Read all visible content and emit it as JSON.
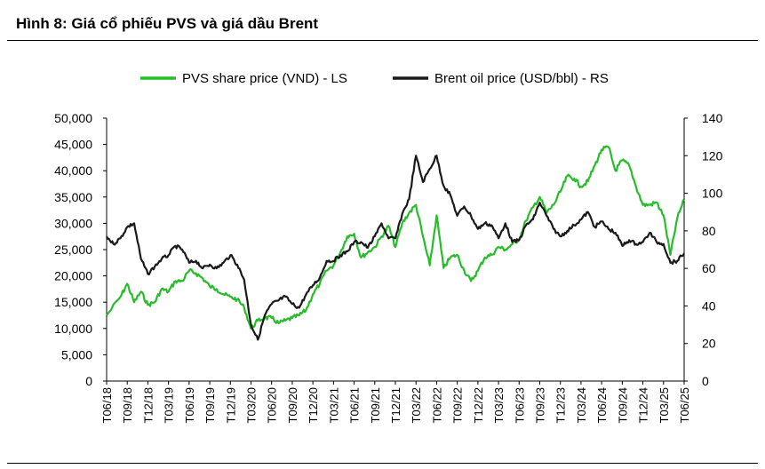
{
  "figure_title": "Hình 8: Giá cổ phiếu PVS và giá dầu Brent",
  "colors": {
    "pvs": "#27bd2a",
    "brent": "#1a1a1a",
    "axis": "#000000"
  },
  "chart_data": {
    "type": "line",
    "title": "",
    "y_left": {
      "min": 0,
      "max": 50000,
      "step": 5000,
      "ticks": [
        "0",
        "5,000",
        "10,000",
        "15,000",
        "20,000",
        "25,000",
        "30,000",
        "35,000",
        "40,000",
        "45,000",
        "50,000"
      ]
    },
    "y_right": {
      "min": 0,
      "max": 140,
      "step": 20,
      "ticks": [
        "0",
        "20",
        "40",
        "60",
        "80",
        "100",
        "120",
        "140"
      ]
    },
    "x_range": [
      "2018-06",
      "2025-06"
    ],
    "x_ticks": [
      "T06/18",
      "T09/18",
      "T12/18",
      "T03/19",
      "T06/19",
      "T09/19",
      "T12/19",
      "T03/20",
      "T06/20",
      "T09/20",
      "T12/20",
      "T03/21",
      "T06/21",
      "T09/21",
      "T12/21",
      "T03/22",
      "T06/22",
      "T09/22",
      "T12/22",
      "T03/23",
      "T06/23",
      "T09/23",
      "T12/23",
      "T03/24",
      "T06/24",
      "T09/24",
      "T12/24",
      "T03/25",
      "T06/25"
    ],
    "legend_position": "top",
    "series": [
      {
        "name": "PVS share price (VND) - LS",
        "axis": "left",
        "color": "#27bd2a",
        "points": [
          [
            "2018-06",
            12500
          ],
          [
            "2018-08",
            16000
          ],
          [
            "2018-09",
            18500
          ],
          [
            "2018-10",
            15000
          ],
          [
            "2018-11",
            17000
          ],
          [
            "2018-12",
            14500
          ],
          [
            "2019-01",
            15000
          ],
          [
            "2019-02",
            17500
          ],
          [
            "2019-03",
            17000
          ],
          [
            "2019-04",
            19000
          ],
          [
            "2019-05",
            19000
          ],
          [
            "2019-06",
            21000
          ],
          [
            "2019-07",
            20500
          ],
          [
            "2019-08",
            19500
          ],
          [
            "2019-09",
            18000
          ],
          [
            "2019-10",
            17500
          ],
          [
            "2019-11",
            16500
          ],
          [
            "2019-12",
            16000
          ],
          [
            "2020-01",
            15500
          ],
          [
            "2020-02",
            14000
          ],
          [
            "2020-03",
            10000
          ],
          [
            "2020-04",
            11500
          ],
          [
            "2020-05",
            12000
          ],
          [
            "2020-06",
            12000
          ],
          [
            "2020-07",
            11000
          ],
          [
            "2020-08",
            11500
          ],
          [
            "2020-09",
            12000
          ],
          [
            "2020-10",
            12500
          ],
          [
            "2020-11",
            13500
          ],
          [
            "2020-12",
            16500
          ],
          [
            "2021-01",
            18500
          ],
          [
            "2021-02",
            21000
          ],
          [
            "2021-03",
            22000
          ],
          [
            "2021-04",
            24500
          ],
          [
            "2021-05",
            27500
          ],
          [
            "2021-06",
            28000
          ],
          [
            "2021-07",
            23500
          ],
          [
            "2021-08",
            24500
          ],
          [
            "2021-09",
            25500
          ],
          [
            "2021-10",
            27500
          ],
          [
            "2021-11",
            29500
          ],
          [
            "2021-12",
            25500
          ],
          [
            "2022-01",
            30000
          ],
          [
            "2022-02",
            32000
          ],
          [
            "2022-03",
            33500
          ],
          [
            "2022-04",
            27500
          ],
          [
            "2022-05",
            22000
          ],
          [
            "2022-06",
            31500
          ],
          [
            "2022-07",
            21500
          ],
          [
            "2022-08",
            23500
          ],
          [
            "2022-09",
            24000
          ],
          [
            "2022-10",
            21000
          ],
          [
            "2022-11",
            19000
          ],
          [
            "2022-12",
            21000
          ],
          [
            "2023-01",
            23500
          ],
          [
            "2023-02",
            24000
          ],
          [
            "2023-03",
            25500
          ],
          [
            "2023-04",
            25000
          ],
          [
            "2023-05",
            26000
          ],
          [
            "2023-06",
            27000
          ],
          [
            "2023-07",
            30500
          ],
          [
            "2023-08",
            33000
          ],
          [
            "2023-09",
            35000
          ],
          [
            "2023-10",
            32000
          ],
          [
            "2023-11",
            33500
          ],
          [
            "2023-12",
            36000
          ],
          [
            "2024-01",
            39000
          ],
          [
            "2024-02",
            38500
          ],
          [
            "2024-03",
            37000
          ],
          [
            "2024-04",
            38000
          ],
          [
            "2024-05",
            41000
          ],
          [
            "2024-06",
            44000
          ],
          [
            "2024-07",
            44500
          ],
          [
            "2024-08",
            40000
          ],
          [
            "2024-09",
            42000
          ],
          [
            "2024-10",
            41000
          ],
          [
            "2024-11",
            37000
          ],
          [
            "2024-12",
            33500
          ],
          [
            "2025-01",
            33500
          ],
          [
            "2025-02",
            34000
          ],
          [
            "2025-03",
            31500
          ],
          [
            "2025-04",
            24000
          ],
          [
            "2025-05",
            31000
          ],
          [
            "2025-06",
            34500
          ]
        ]
      },
      {
        "name": "Brent oil price (USD/bbl) - RS",
        "axis": "right",
        "color": "#1a1a1a",
        "points": [
          [
            "2018-06",
            77
          ],
          [
            "2018-07",
            73
          ],
          [
            "2018-08",
            76
          ],
          [
            "2018-09",
            82
          ],
          [
            "2018-10",
            84
          ],
          [
            "2018-11",
            65
          ],
          [
            "2018-12",
            57
          ],
          [
            "2019-01",
            61
          ],
          [
            "2019-02",
            65
          ],
          [
            "2019-03",
            67
          ],
          [
            "2019-04",
            72
          ],
          [
            "2019-05",
            70
          ],
          [
            "2019-06",
            63
          ],
          [
            "2019-07",
            64
          ],
          [
            "2019-08",
            60
          ],
          [
            "2019-09",
            62
          ],
          [
            "2019-10",
            60
          ],
          [
            "2019-11",
            63
          ],
          [
            "2019-12",
            67
          ],
          [
            "2020-01",
            62
          ],
          [
            "2020-02",
            54
          ],
          [
            "2020-03",
            30
          ],
          [
            "2020-04",
            22
          ],
          [
            "2020-05",
            35
          ],
          [
            "2020-06",
            41
          ],
          [
            "2020-07",
            43
          ],
          [
            "2020-08",
            45
          ],
          [
            "2020-09",
            41
          ],
          [
            "2020-10",
            39
          ],
          [
            "2020-11",
            46
          ],
          [
            "2020-12",
            51
          ],
          [
            "2021-01",
            55
          ],
          [
            "2021-02",
            64
          ],
          [
            "2021-03",
            64
          ],
          [
            "2021-04",
            67
          ],
          [
            "2021-05",
            69
          ],
          [
            "2021-06",
            74
          ],
          [
            "2021-07",
            74
          ],
          [
            "2021-08",
            71
          ],
          [
            "2021-09",
            77
          ],
          [
            "2021-10",
            84
          ],
          [
            "2021-11",
            76
          ],
          [
            "2021-12",
            76
          ],
          [
            "2022-01",
            89
          ],
          [
            "2022-02",
            97
          ],
          [
            "2022-03",
            120
          ],
          [
            "2022-04",
            106
          ],
          [
            "2022-05",
            113
          ],
          [
            "2022-06",
            120
          ],
          [
            "2022-07",
            104
          ],
          [
            "2022-08",
            99
          ],
          [
            "2022-09",
            88
          ],
          [
            "2022-10",
            93
          ],
          [
            "2022-11",
            88
          ],
          [
            "2022-12",
            81
          ],
          [
            "2023-01",
            84
          ],
          [
            "2023-02",
            83
          ],
          [
            "2023-03",
            76
          ],
          [
            "2023-04",
            84
          ],
          [
            "2023-05",
            74
          ],
          [
            "2023-06",
            75
          ],
          [
            "2023-07",
            83
          ],
          [
            "2023-08",
            86
          ],
          [
            "2023-09",
            95
          ],
          [
            "2023-10",
            88
          ],
          [
            "2023-11",
            81
          ],
          [
            "2023-12",
            77
          ],
          [
            "2024-01",
            80
          ],
          [
            "2024-02",
            83
          ],
          [
            "2024-03",
            86
          ],
          [
            "2024-04",
            90
          ],
          [
            "2024-05",
            82
          ],
          [
            "2024-06",
            85
          ],
          [
            "2024-07",
            81
          ],
          [
            "2024-08",
            79
          ],
          [
            "2024-09",
            72
          ],
          [
            "2024-10",
            75
          ],
          [
            "2024-11",
            73
          ],
          [
            "2024-12",
            74
          ],
          [
            "2025-01",
            79
          ],
          [
            "2025-02",
            74
          ],
          [
            "2025-03",
            73
          ],
          [
            "2025-04",
            63
          ],
          [
            "2025-05",
            64
          ],
          [
            "2025-06",
            68
          ]
        ]
      }
    ]
  }
}
